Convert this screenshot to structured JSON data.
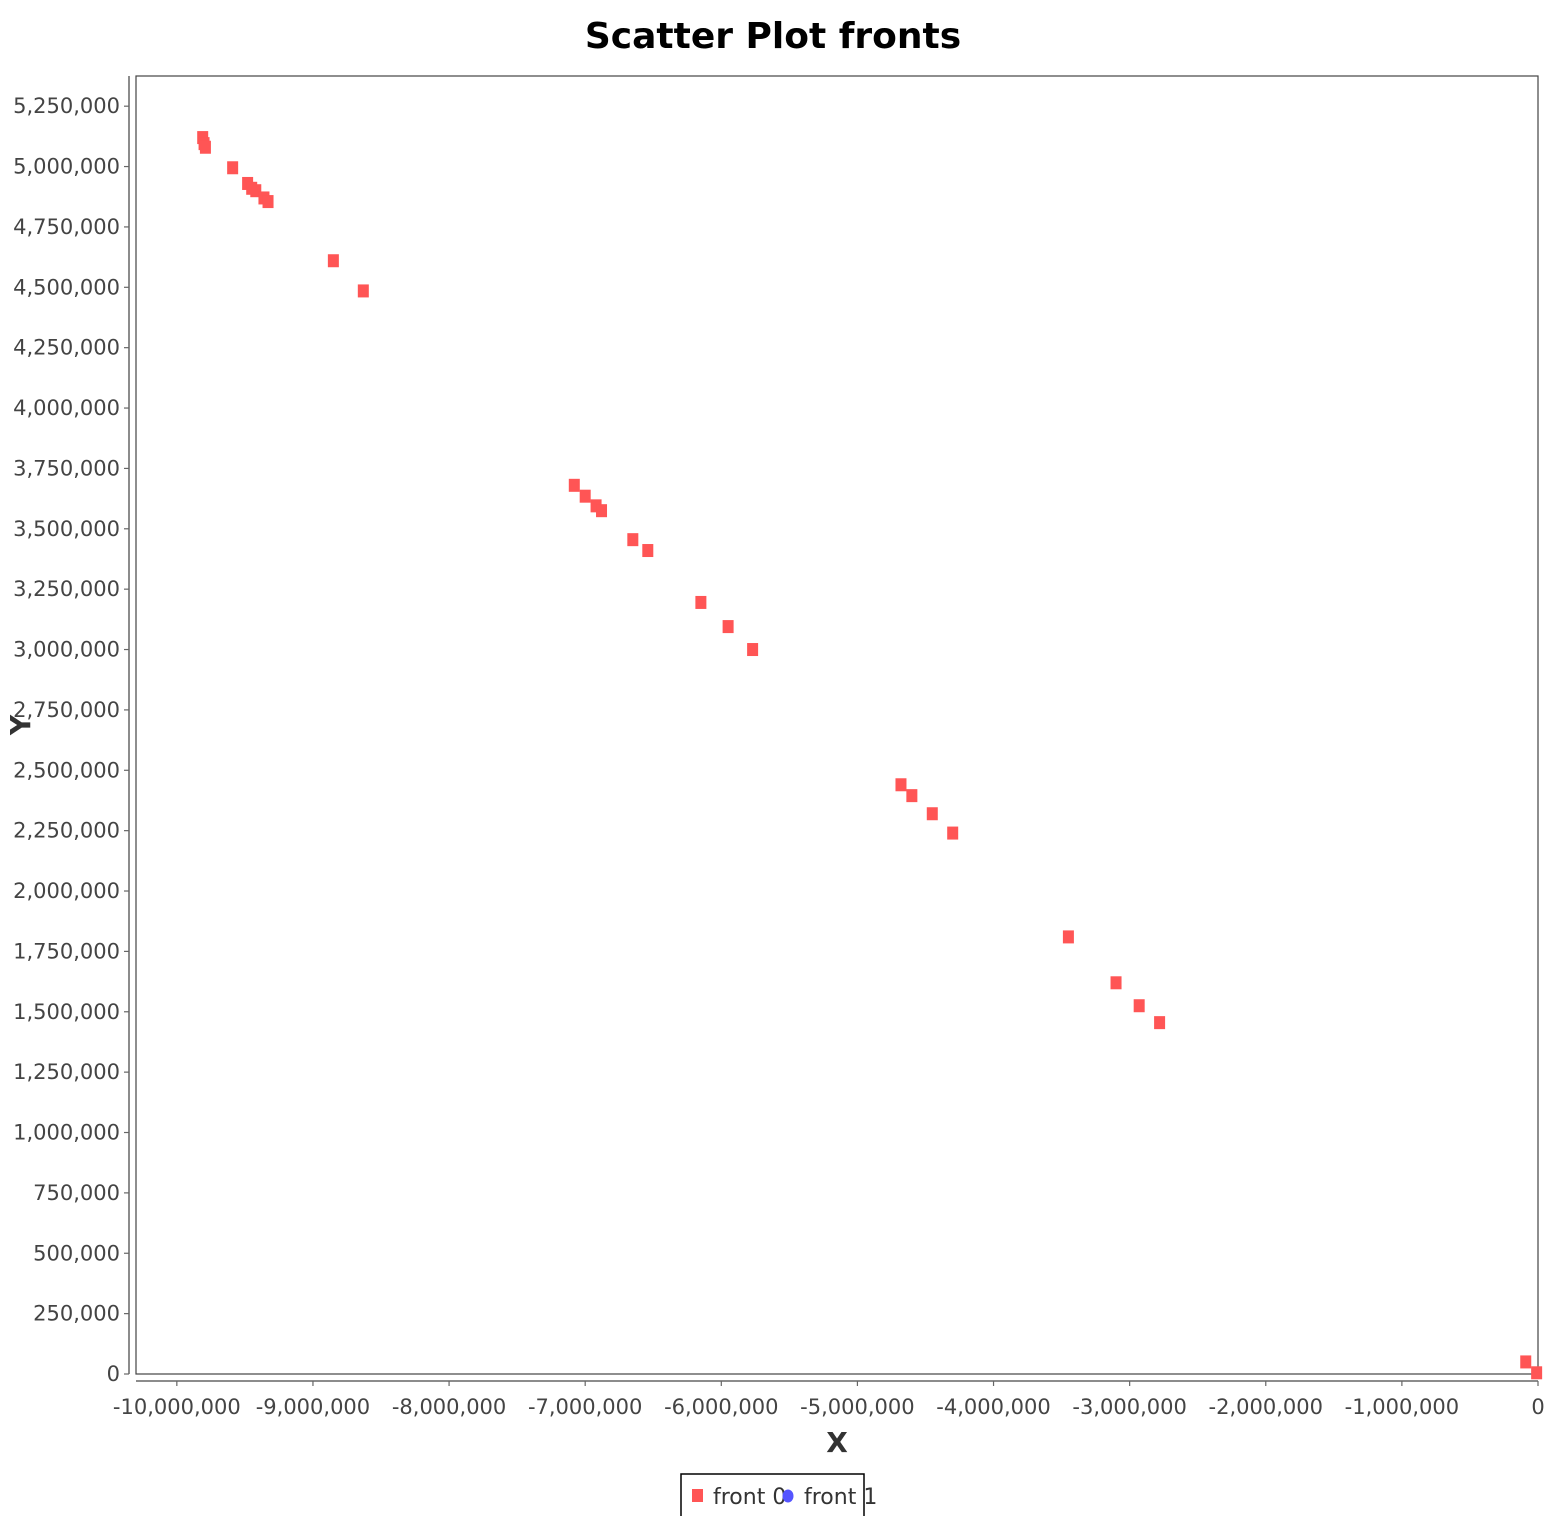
{
  "chart_data": {
    "type": "scatter",
    "title": "Scatter Plot fronts",
    "xlabel": "X",
    "ylabel": "Y",
    "xlim": [
      -10300000,
      0
    ],
    "ylim": [
      0,
      5375000
    ],
    "grid": false,
    "legend_position": "bottom",
    "x_ticks": [
      -10000000,
      -9000000,
      -8000000,
      -7000000,
      -6000000,
      -5000000,
      -4000000,
      -3000000,
      -2000000,
      -1000000,
      0
    ],
    "x_tick_labels": [
      "-10,000,000",
      "-9,000,000",
      "-8,000,000",
      "-7,000,000",
      "-6,000,000",
      "-5,000,000",
      "-4,000,000",
      "-3,000,000",
      "-2,000,000",
      "-1,000,000",
      "0"
    ],
    "y_ticks": [
      0,
      250000,
      500000,
      750000,
      1000000,
      1250000,
      1500000,
      1750000,
      2000000,
      2250000,
      2500000,
      2750000,
      3000000,
      3250000,
      3500000,
      3750000,
      4000000,
      4250000,
      4500000,
      4750000,
      5000000,
      5250000
    ],
    "y_tick_labels": [
      "0",
      "250,000",
      "500,000",
      "750,000",
      "1,000,000",
      "1,250,000",
      "1,500,000",
      "1,750,000",
      "2,000,000",
      "2,250,000",
      "2,500,000",
      "2,750,000",
      "3,000,000",
      "3,250,000",
      "3,500,000",
      "3,750,000",
      "4,000,000",
      "4,250,000",
      "4,500,000",
      "4,750,000",
      "5,000,000",
      "5,250,000"
    ],
    "series": [
      {
        "name": "front 0",
        "color": "#ff5555",
        "marker": "square",
        "points": [
          [
            -9810000,
            5120000
          ],
          [
            -9800000,
            5095000
          ],
          [
            -9790000,
            5080000
          ],
          [
            -9590000,
            4995000
          ],
          [
            -9480000,
            4930000
          ],
          [
            -9450000,
            4910000
          ],
          [
            -9420000,
            4900000
          ],
          [
            -9360000,
            4870000
          ],
          [
            -9330000,
            4855000
          ],
          [
            -8850000,
            4610000
          ],
          [
            -8630000,
            4485000
          ],
          [
            -7080000,
            3680000
          ],
          [
            -7000000,
            3635000
          ],
          [
            -6920000,
            3595000
          ],
          [
            -6880000,
            3575000
          ],
          [
            -6650000,
            3455000
          ],
          [
            -6540000,
            3410000
          ],
          [
            -6150000,
            3195000
          ],
          [
            -5950000,
            3095000
          ],
          [
            -5770000,
            3000000
          ],
          [
            -4680000,
            2440000
          ],
          [
            -4600000,
            2395000
          ],
          [
            -4450000,
            2320000
          ],
          [
            -4300000,
            2240000
          ],
          [
            -3450000,
            1810000
          ],
          [
            -3100000,
            1620000
          ],
          [
            -2930000,
            1525000
          ],
          [
            -2780000,
            1455000
          ],
          [
            -90000,
            50000
          ],
          [
            -10000,
            5000
          ]
        ]
      },
      {
        "name": "front 1",
        "color": "#5555ff",
        "marker": "circle",
        "points": []
      }
    ]
  }
}
